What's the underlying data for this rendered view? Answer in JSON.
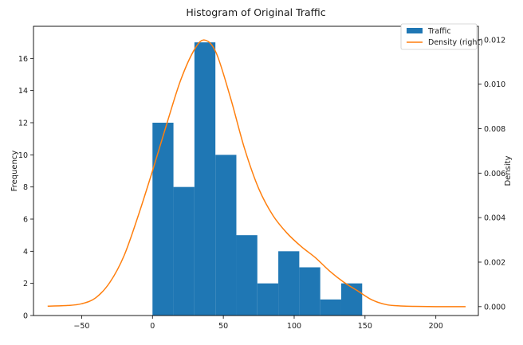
{
  "chart_data": {
    "type": "bar",
    "title": "Histogram of Original Traffic",
    "xlabel": "",
    "ylabel": "Frequency",
    "ylabel_right": "Density",
    "xlim": [
      -84,
      230
    ],
    "ylim": [
      0,
      18
    ],
    "ylim_right": [
      -0.0004,
      0.0126
    ],
    "xticks": [
      -50,
      0,
      50,
      100,
      150,
      200
    ],
    "xtick_labels": [
      "−50",
      "0",
      "50",
      "100",
      "150",
      "200"
    ],
    "yticks": [
      0,
      2,
      4,
      6,
      8,
      10,
      12,
      14,
      16
    ],
    "yticks_right": [
      0.0,
      0.002,
      0.004,
      0.006,
      0.008,
      0.01,
      0.012
    ],
    "ytick_right_labels": [
      "0.000",
      "0.002",
      "0.004",
      "0.006",
      "0.008",
      "0.010",
      "0.012"
    ],
    "grid": false,
    "legend_position": "top-right",
    "colors": {
      "histogram": "#1f77b4",
      "density": "#ff7f0e"
    },
    "series": [
      {
        "name": "Traffic",
        "type": "histogram",
        "bin_edges": [
          0,
          14.8,
          29.6,
          44.4,
          59.2,
          74.0,
          88.8,
          103.6,
          118.4,
          133.2,
          148.0
        ],
        "counts": [
          12,
          8,
          17,
          10,
          5,
          2,
          4,
          3,
          1,
          2
        ]
      },
      {
        "name": "Density (right)",
        "type": "line",
        "axis": "right",
        "x": [
          -74,
          -60,
          -50,
          -40,
          -30,
          -20,
          -10,
          0,
          10,
          20,
          30,
          37,
          45,
          55,
          65,
          75,
          85,
          95,
          105,
          115,
          125,
          135,
          145,
          155,
          165,
          175,
          185,
          200,
          221
        ],
        "y": [
          2e-05,
          5e-05,
          0.00013,
          0.0004,
          0.0011,
          0.0023,
          0.0041,
          0.0061,
          0.0082,
          0.0102,
          0.0116,
          0.01198,
          0.0114,
          0.0094,
          0.0071,
          0.0053,
          0.0041,
          0.0033,
          0.0027,
          0.0022,
          0.0016,
          0.0011,
          0.0007,
          0.0003,
          9e-05,
          3e-05,
          1e-05,
          0.0,
          0.0
        ]
      }
    ]
  }
}
